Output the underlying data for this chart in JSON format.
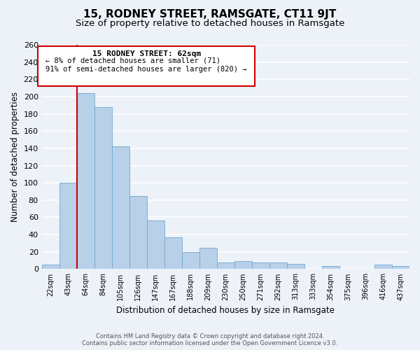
{
  "title": "15, RODNEY STREET, RAMSGATE, CT11 9JT",
  "subtitle": "Size of property relative to detached houses in Ramsgate",
  "xlabel": "Distribution of detached houses by size in Ramsgate",
  "ylabel": "Number of detached properties",
  "bar_labels": [
    "22sqm",
    "43sqm",
    "64sqm",
    "84sqm",
    "105sqm",
    "126sqm",
    "147sqm",
    "167sqm",
    "188sqm",
    "209sqm",
    "230sqm",
    "250sqm",
    "271sqm",
    "292sqm",
    "313sqm",
    "333sqm",
    "354sqm",
    "375sqm",
    "396sqm",
    "416sqm",
    "437sqm"
  ],
  "bar_values": [
    5,
    100,
    204,
    188,
    142,
    85,
    56,
    37,
    20,
    25,
    8,
    9,
    8,
    8,
    6,
    0,
    4,
    0,
    0,
    5,
    4
  ],
  "bar_color": "#b8d0e8",
  "bar_edgecolor": "#6fa8d0",
  "red_line_x": 2,
  "red_line_color": "#cc0000",
  "ylim": [
    0,
    260
  ],
  "yticks": [
    0,
    20,
    40,
    60,
    80,
    100,
    120,
    140,
    160,
    180,
    200,
    220,
    240,
    260
  ],
  "annotation_title": "15 RODNEY STREET: 62sqm",
  "annotation_line1": "← 8% of detached houses are smaller (71)",
  "annotation_line2": "91% of semi-detached houses are larger (820) →",
  "footer_line1": "Contains HM Land Registry data © Crown copyright and database right 2024.",
  "footer_line2": "Contains public sector information licensed under the Open Government Licence v3.0.",
  "bg_color": "#edf2f9",
  "grid_color": "#ffffff",
  "title_fontsize": 11,
  "subtitle_fontsize": 9.5
}
